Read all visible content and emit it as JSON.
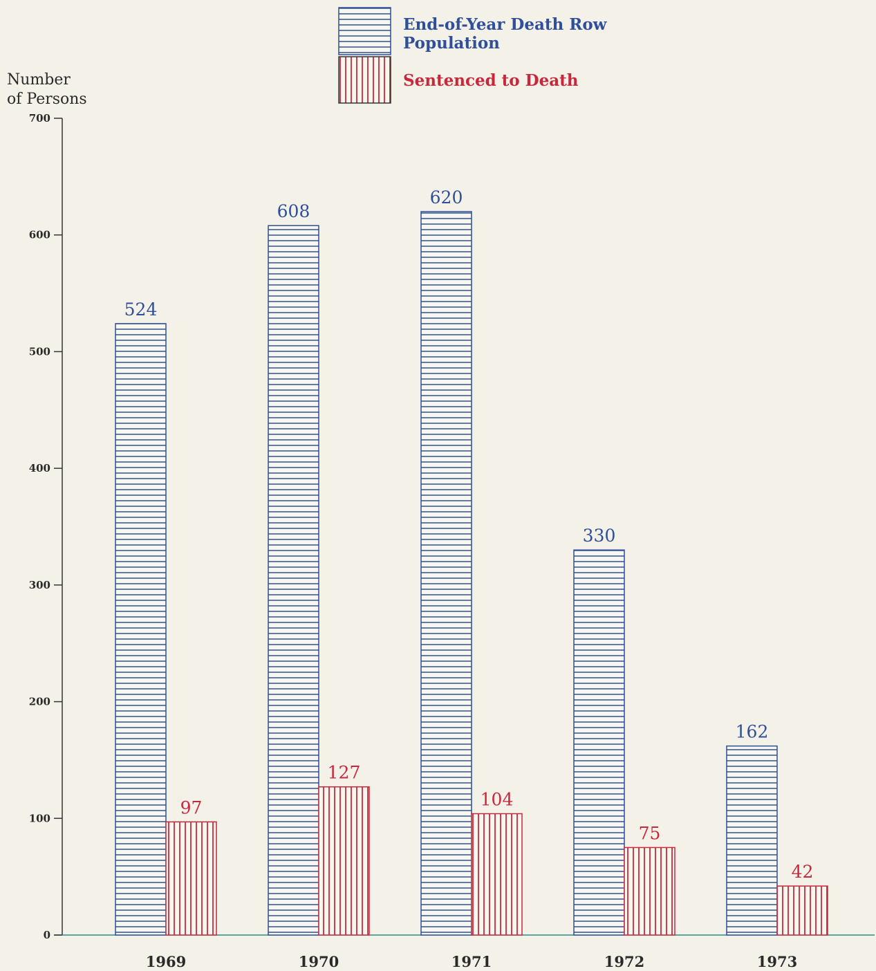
{
  "chart_data": {
    "type": "bar",
    "title": "",
    "xlabel": "",
    "ylabel": [
      "Number",
      "of Persons"
    ],
    "ylim": [
      0,
      700
    ],
    "yticks": [
      0,
      100,
      200,
      300,
      400,
      500,
      600,
      700
    ],
    "categories": [
      "1969",
      "1970",
      "1971",
      "1972",
      "1973"
    ],
    "series": [
      {
        "name": [
          "End-of-Year Death Row",
          "Population"
        ],
        "values": [
          524,
          608,
          620,
          330,
          162
        ],
        "color": "#2f4f9a",
        "pattern": "horizontal-stripes"
      },
      {
        "name": [
          "Sentenced to Death"
        ],
        "values": [
          97,
          127,
          104,
          75,
          42
        ],
        "color": "#c8283c",
        "pattern": "vertical-stripes"
      }
    ],
    "grid": false,
    "legend_position": "top-center"
  }
}
